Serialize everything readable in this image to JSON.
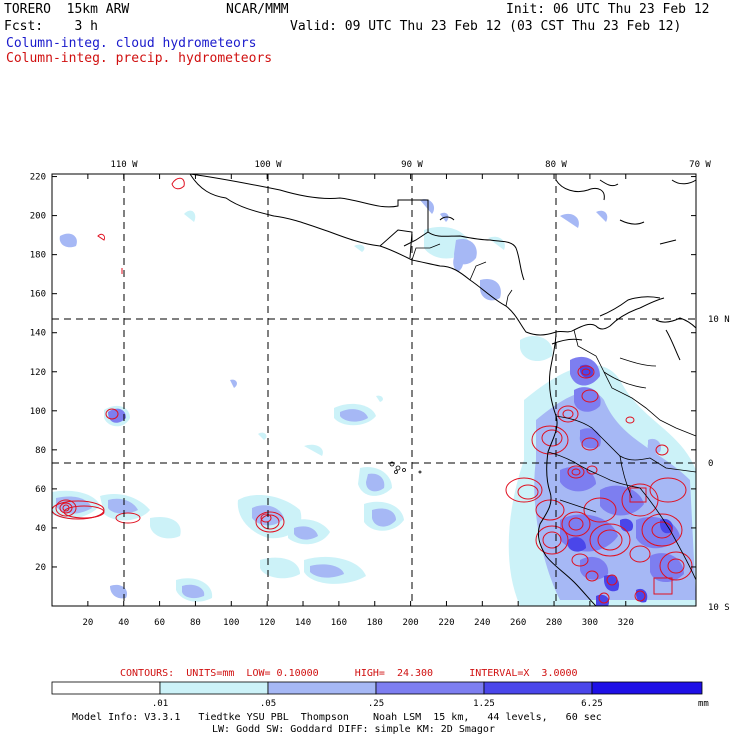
{
  "header": {
    "model": "TORERO  15km ARW",
    "center": "NCAR/MMM",
    "init": "Init: 06 UTC Thu 23 Feb 12",
    "fcst": "Fcst:    3 h",
    "valid": "Valid: 09 UTC Thu 23 Feb 12 (03 CST Thu 23 Feb 12)",
    "field_cloud": "Column-integ. cloud hydrometeors",
    "field_precip": "Column-integ. precip. hydrometeors"
  },
  "colors": {
    "cloud_text": "#1a1acc",
    "precip_text": "#d01010",
    "contour": "#e01020",
    "grid": "#000000"
  },
  "axes": {
    "top_lon_labels": [
      "110 W",
      "100 W",
      "90 W",
      "80 W",
      "70 W"
    ],
    "right_lat_labels": [
      "10 N",
      "0",
      "10 S"
    ],
    "y_ticks": [
      "220",
      "200",
      "180",
      "160",
      "140",
      "120",
      "100",
      "80",
      "60",
      "40",
      "20"
    ],
    "x_ticks": [
      "20",
      "40",
      "60",
      "80",
      "100",
      "120",
      "140",
      "160",
      "180",
      "200",
      "220",
      "240",
      "260",
      "280",
      "300",
      "320"
    ]
  },
  "contour_info": {
    "text": "CONTOURS:  UNITS=mm  LOW= 0.10000      HIGH=  24.300      INTERVAL=X  3.0000"
  },
  "colorbar": {
    "levels": [
      ".01",
      ".05",
      ".25",
      "1.25",
      "6.25"
    ],
    "unit": "mm",
    "colors": [
      "#ffffff",
      "#ccf2f8",
      "#a6b8f5",
      "#7d7ef0",
      "#4a46ea",
      "#1e10e6"
    ]
  },
  "model_info": {
    "line1": "Model Info: V3.3.1   Tiedtke YSU PBL  Thompson    Noah LSM  15 km,   44 levels,   60 sec",
    "line2": "LW: Godd SW: Goddard DIFF: simple KM: 2D Smagor"
  }
}
